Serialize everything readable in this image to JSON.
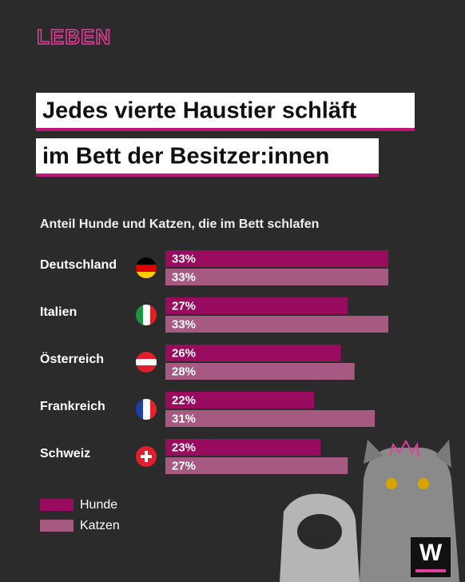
{
  "brand": "LEBEN",
  "logo": "W",
  "chart_data": {
    "type": "hbar",
    "title_lines": [
      "Jedes vierte Haustier schläft",
      "im Bett der Besitzer:innen"
    ],
    "subtitle": "Anteil Hunde und Katzen, die im Bett schlafen",
    "categories": [
      "Deutschland",
      "Italien",
      "Österreich",
      "Frankreich",
      "Schweiz"
    ],
    "series": [
      {
        "name": "Hunde",
        "color": "#980b5f",
        "values": [
          33,
          27,
          26,
          22,
          23
        ],
        "value_labels": [
          "33%",
          "27%",
          "26%",
          "22%",
          "23%"
        ]
      },
      {
        "name": "Katzen",
        "color": "#a65a81",
        "values": [
          33,
          33,
          28,
          31,
          27
        ],
        "value_labels": [
          "33%",
          "33%",
          "28%",
          "31%",
          "27%"
        ]
      }
    ],
    "legend": "bottom-left"
  }
}
